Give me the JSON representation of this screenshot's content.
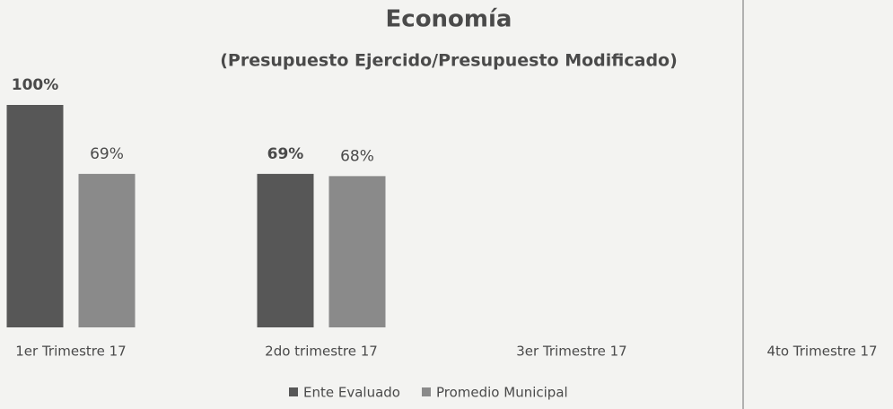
{
  "chart_data": {
    "type": "bar",
    "title": "Economía",
    "subtitle": "(Presupuesto Ejercido/Presupuesto Modificado)",
    "categories": [
      "1er Trimestre 17",
      "2do trimestre 17",
      "3er Trimestre 17",
      "4to Trimestre 17"
    ],
    "series": [
      {
        "name": "Ente Evaluado",
        "color": "#575757",
        "values": [
          100,
          69,
          null,
          null
        ],
        "value_labels": [
          "100%",
          "69%",
          null,
          null
        ]
      },
      {
        "name": "Promedio Municipal",
        "color": "#8a8a8a",
        "values": [
          69,
          68,
          null,
          null
        ],
        "value_labels": [
          "69%",
          "68%",
          null,
          null
        ]
      }
    ],
    "legend": "bottom"
  }
}
